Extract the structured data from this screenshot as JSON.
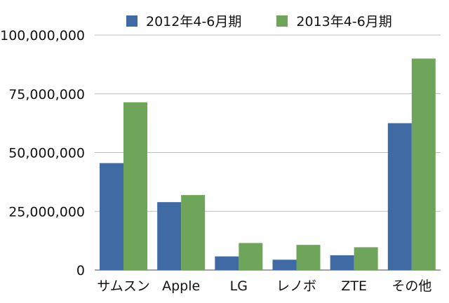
{
  "chart_data": {
    "type": "bar",
    "title": "",
    "xlabel": "",
    "ylabel": "",
    "categories": [
      "サムスン",
      "Apple",
      "LG",
      "レノボ",
      "ZTE",
      "その他"
    ],
    "series": [
      {
        "name": "2012年4-6月期",
        "color": "#3f6aa4",
        "values": [
          45500000,
          28900000,
          5800000,
          4400000,
          6300000,
          62500000
        ]
      },
      {
        "name": "2013年4-6月期",
        "color": "#6fa55a",
        "values": [
          71400000,
          31900000,
          11500000,
          10700000,
          9700000,
          90000000
        ]
      }
    ],
    "ylim": [
      0,
      100000000
    ],
    "yticks": [
      0,
      25000000,
      50000000,
      75000000,
      100000000
    ],
    "ytick_labels": [
      "0",
      "25,000,000",
      "50,000,000",
      "75,000,000",
      "100,000,000"
    ],
    "grid": true,
    "legend_position": "top"
  }
}
